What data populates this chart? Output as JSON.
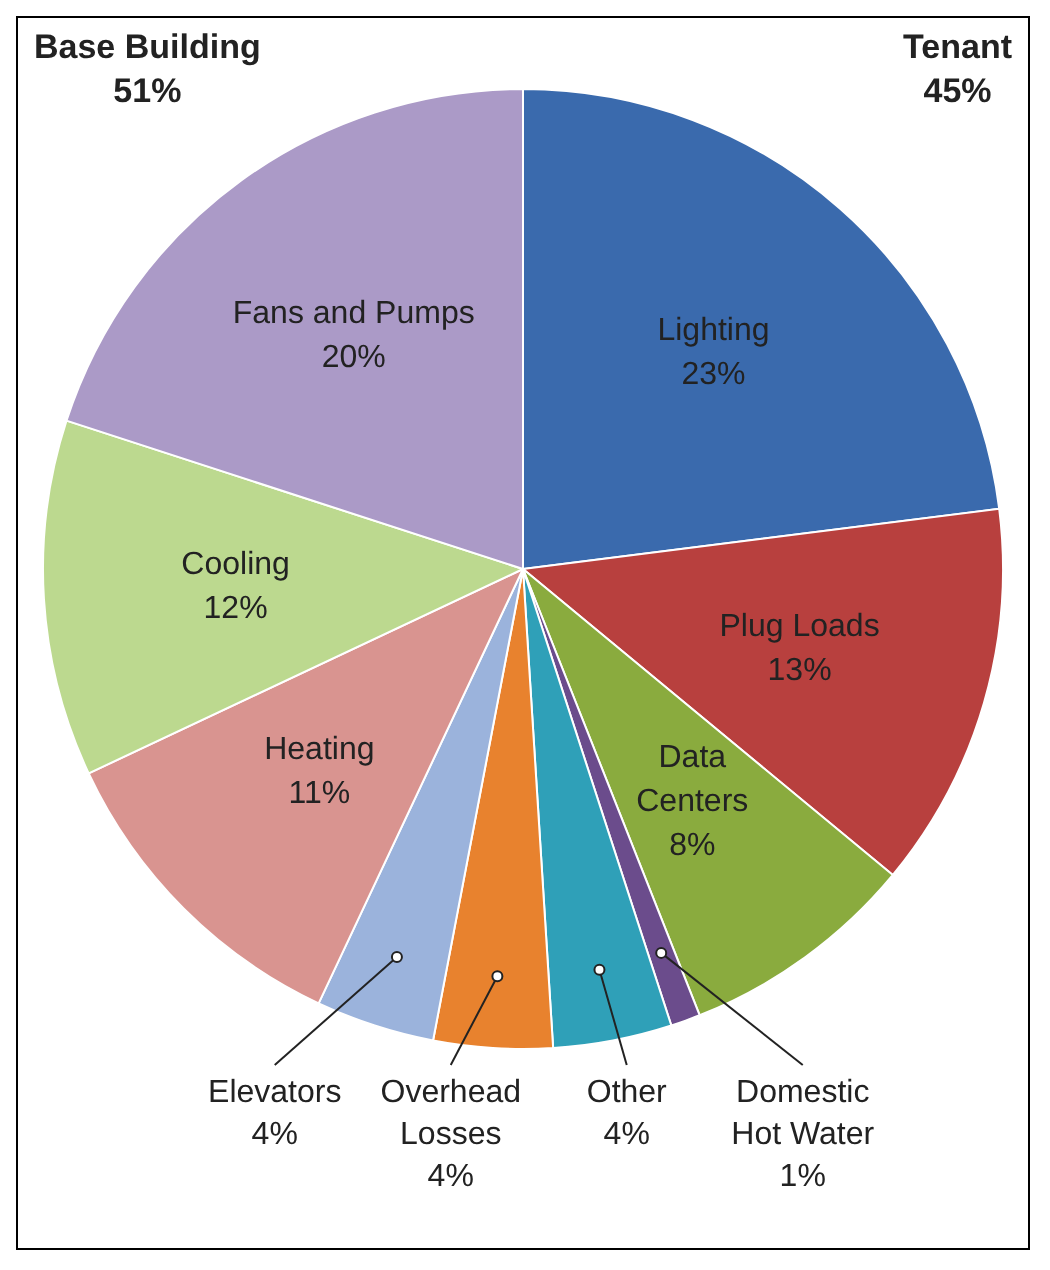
{
  "chart_data": {
    "type": "pie",
    "categories": [
      "Lighting",
      "Plug Loads",
      "Data Centers",
      "Domestic Hot Water",
      "Other",
      "Overhead Losses",
      "Elevators",
      "Heating",
      "Cooling",
      "Fans and Pumps"
    ],
    "values": [
      23,
      13,
      8,
      1,
      4,
      4,
      4,
      11,
      12,
      20
    ],
    "colors": [
      "#3a6aad",
      "#b8403e",
      "#8aab3e",
      "#6b4c8c",
      "#2fa0b8",
      "#e8822e",
      "#9bb3dc",
      "#d99490",
      "#bcd98f",
      "#ab9ac7"
    ],
    "value_labels": [
      "23%",
      "13%",
      "8%",
      "1%",
      "4%",
      "4%",
      "4%",
      "11%",
      "12%",
      "20%"
    ],
    "legend": false,
    "annotations": [
      "Base Building\n51%",
      "Tenant\n45%"
    ]
  }
}
